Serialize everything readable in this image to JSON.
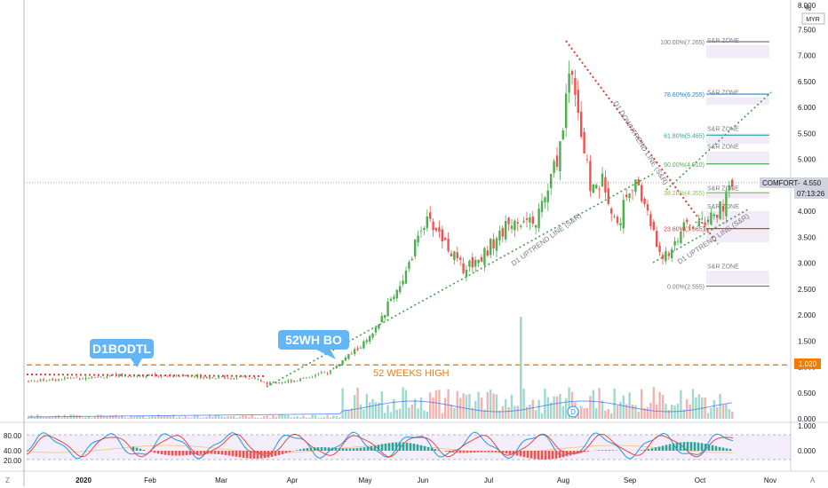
{
  "chart_data": {
    "type": "candlestick",
    "symbol": "COMFORT",
    "currency": "MYR",
    "scale": "log",
    "last_price": "4.550",
    "countdown": "07:13:26",
    "ref_level": "1.020",
    "scale_mode_label": "%",
    "auto_label": "A",
    "z_label": "Z",
    "x_ticks": [
      "2020",
      "Feb",
      "Mar",
      "Apr",
      "May",
      "Jun",
      "Jul",
      "Aug",
      "Sep",
      "Oct",
      "Nov"
    ],
    "y_ticks": [
      "8.000",
      "7.500",
      "7.000",
      "6.500",
      "6.000",
      "5.500",
      "5.000",
      "4.500",
      "4.000",
      "3.500",
      "3.000",
      "2.500",
      "2.000",
      "1.500",
      "1.000",
      "0.500",
      "0.000"
    ],
    "osc_ticks": [
      "80.00",
      "40.00",
      "20.00"
    ],
    "macd_ticks": [
      "1.000",
      "0.000"
    ],
    "fib_levels": [
      {
        "label": "100.00%(7.265)",
        "price": 7.265,
        "color": "#787b86"
      },
      {
        "label": "78.60%(6.255)",
        "price": 6.255,
        "color": "#2a82c9"
      },
      {
        "label": "61.80%(5.465)",
        "price": 5.465,
        "color": "#26a69a"
      },
      {
        "label": "50.00%(4.910)",
        "price": 4.91,
        "color": "#4caf50"
      },
      {
        "label": "38.20%(4.355)",
        "price": 4.355,
        "color": "#8bc34a"
      },
      {
        "label": "23.60%(3.665)",
        "price": 3.665,
        "color": "#e53935"
      },
      {
        "label": "0.00%(2.555)",
        "price": 2.555,
        "color": "#787b86"
      }
    ],
    "sr_zones": [
      {
        "label": "S&R ZONE",
        "top": 7.2,
        "bottom": 6.95
      },
      {
        "label": "S&R ZONE",
        "top": 6.2,
        "bottom": 6.05
      },
      {
        "label": "S&R ZONE",
        "top": 5.5,
        "bottom": 5.3
      },
      {
        "label": "S&R ZONE",
        "top": 5.15,
        "bottom": 4.9
      },
      {
        "label": "S&R ZONE",
        "top": 4.35,
        "bottom": 4.25
      },
      {
        "label": "S&R ZONE",
        "top": 4.0,
        "bottom": 3.4
      },
      {
        "label": "S&R ZONE",
        "top": 2.85,
        "bottom": 2.6
      }
    ],
    "annotations": {
      "callout_1": "D1BODTL",
      "callout_2": "52WH BO",
      "high_label": "52 WEEKS HIGH",
      "downtrend_label": "D1 DOWNTREND LINE (S&R)",
      "uptrend_label": "D1 UPTREND LINE (S&R)",
      "uptrend_label_2": "D1 UPTREND LINE (S&R)",
      "dividend_marker": "D"
    },
    "colors": {
      "up": "#4caf50",
      "down": "#ef5350",
      "up_vol": "#9fd9cf",
      "down_vol": "#f5b2ae",
      "orange": "#f57c00",
      "callout": "#64b5f6"
    }
  }
}
